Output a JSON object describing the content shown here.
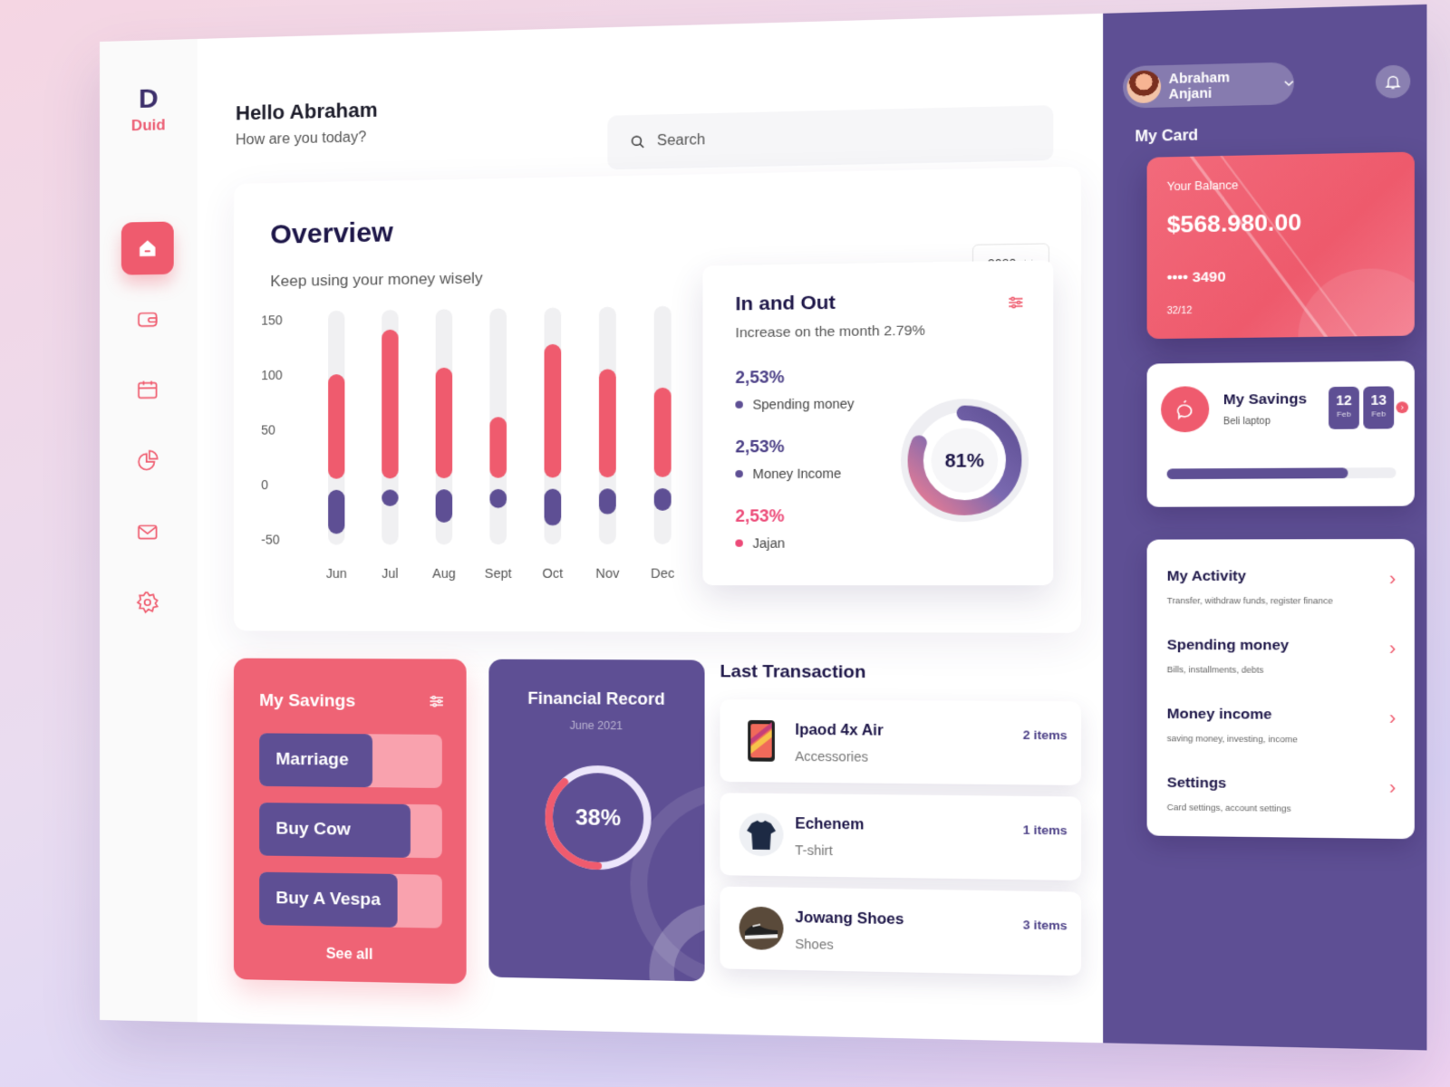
{
  "app": {
    "logo_mark": "D",
    "name": "Duid"
  },
  "nav": [
    {
      "name": "home",
      "icon": "home-icon",
      "active": true
    },
    {
      "name": "wallet",
      "icon": "wallet-icon"
    },
    {
      "name": "calendar",
      "icon": "calendar-icon"
    },
    {
      "name": "statistics",
      "icon": "pie-chart-icon"
    },
    {
      "name": "messages",
      "icon": "mail-icon"
    },
    {
      "name": "settings",
      "icon": "gear-icon"
    }
  ],
  "header": {
    "greeting": "Hello Abraham",
    "subtitle": "How are you today?"
  },
  "search": {
    "placeholder": "Search"
  },
  "overview": {
    "title": "Overview",
    "subtitle": "Keep using your money wisely",
    "year": "2020"
  },
  "chart_data": {
    "type": "bar",
    "categories": [
      "Jun",
      "Jul",
      "Aug",
      "Sept",
      "Oct",
      "Nov",
      "Dec"
    ],
    "series": [
      {
        "name": "",
        "color": "#ef5b6e",
        "values": [
          100,
          140,
          105,
          60,
          125,
          102,
          85
        ]
      },
      {
        "name": "",
        "color": "#5e4f94",
        "values": [
          -45,
          -20,
          -35,
          -22,
          -38,
          -28,
          -25
        ]
      }
    ],
    "yticks": [
      150,
      100,
      50,
      0,
      -50
    ],
    "ylim": [
      -50,
      150
    ],
    "track_range": [
      -55,
      158
    ]
  },
  "in_out": {
    "title": "In and Out",
    "subtitle": "Increase on the month 2.79%",
    "stats": [
      {
        "value": "2,53%",
        "label": "Spending money",
        "color": "#5e4f94"
      },
      {
        "value": "2,53%",
        "label": "Money Income",
        "color": "#5e4f94"
      },
      {
        "value": "2,53%",
        "label": "Jajan",
        "color": "#ec4a78"
      }
    ],
    "donut_percent": 81,
    "donut_label": "81%"
  },
  "right_panel": {
    "user_name": "Abraham Anjani",
    "my_card_label": "My Card",
    "card": {
      "balance_label": "Your Balance",
      "balance": "$568.980.00",
      "number": "•••• 3490",
      "expiry": "32/12"
    },
    "savings": {
      "title": "My Savings",
      "subtitle": "Beli laptop",
      "dates": [
        {
          "day": "12",
          "month": "Feb"
        },
        {
          "day": "13",
          "month": "Feb"
        }
      ],
      "progress": 0.79
    },
    "menu": [
      {
        "title": "My Activity",
        "subtitle": "Transfer, withdraw funds, register finance"
      },
      {
        "title": "Spending money",
        "subtitle": "Bills, installments, debts"
      },
      {
        "title": "Money income",
        "subtitle": "saving money, investing, income"
      },
      {
        "title": "Settings",
        "subtitle": "Card settings, account settings"
      }
    ]
  },
  "my_savings": {
    "title": "My Savings",
    "goals": [
      {
        "label": "Marriage",
        "progress": 0.62
      },
      {
        "label": "Buy Cow",
        "progress": 0.83
      },
      {
        "label": "Buy A Vespa",
        "progress": 0.76
      }
    ],
    "see_all": "See all"
  },
  "financial_record": {
    "title": "Financial Record",
    "date": "June 2021",
    "percent": 38,
    "label": "38%"
  },
  "last_transaction": {
    "title": "Last Transaction",
    "items": [
      {
        "name": "Ipaod 4x Air",
        "category": "Accessories",
        "count": "2 items",
        "icon": "tablet-icon"
      },
      {
        "name": "Echenem",
        "category": "T-shirt",
        "count": "1 items",
        "icon": "tshirt-icon"
      },
      {
        "name": "Jowang Shoes",
        "category": "Shoes",
        "count": "3 items",
        "icon": "shoe-icon"
      }
    ]
  }
}
